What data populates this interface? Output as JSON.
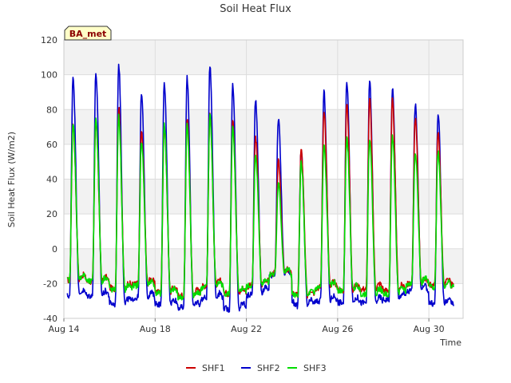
{
  "chart_data": {
    "type": "line",
    "title": "Soil Heat Flux",
    "xlabel": "Time",
    "ylabel": "Soil Heat Flux (W/m2)",
    "badge": "BA_met",
    "ylim": [
      -40,
      120
    ],
    "yticks": [
      -40,
      -20,
      0,
      20,
      40,
      60,
      80,
      100,
      120
    ],
    "xlim": [
      14,
      31.5
    ],
    "xticks": [
      {
        "value": 14,
        "label": "Aug 14"
      },
      {
        "value": 18,
        "label": "Aug 18"
      },
      {
        "value": 22,
        "label": "Aug 22"
      },
      {
        "value": 26,
        "label": "Aug 26"
      },
      {
        "value": 30,
        "label": "Aug 30"
      }
    ],
    "grid": true,
    "legend_position": "bottom",
    "series": [
      {
        "name": "SHF1",
        "color": "#cc0000",
        "daily_peaks": [
          72,
          74,
          81,
          67,
          71,
          75,
          78,
          75,
          64,
          50,
          57,
          80,
          84,
          86,
          85,
          75,
          67
        ],
        "daily_troughs": [
          -18,
          -19,
          -23,
          -20,
          -25,
          -27,
          -21,
          -26,
          -21,
          -14,
          -27,
          -22,
          -24,
          -23,
          -24,
          -20,
          -21
        ]
      },
      {
        "name": "SHF2",
        "color": "#0000cc",
        "daily_peaks": [
          99,
          101,
          106,
          89,
          95,
          98,
          106,
          95,
          86,
          74,
          57,
          90,
          96,
          97,
          92,
          83,
          78
        ],
        "daily_troughs": [
          -27,
          -27,
          -32,
          -28,
          -32,
          -34,
          -28,
          -35,
          -26,
          -14,
          -33,
          -30,
          -31,
          -31,
          -29,
          -24,
          -32
        ]
      },
      {
        "name": "SHF3",
        "color": "#00dd00",
        "daily_peaks": [
          72,
          75,
          76,
          62,
          71,
          71,
          77,
          69,
          54,
          37,
          50,
          59,
          64,
          64,
          65,
          56,
          56
        ],
        "daily_troughs": [
          -18,
          -19,
          -24,
          -21,
          -26,
          -28,
          -22,
          -26,
          -21,
          -14,
          -28,
          -22,
          -24,
          -26,
          -26,
          -20,
          -22
        ]
      }
    ]
  }
}
